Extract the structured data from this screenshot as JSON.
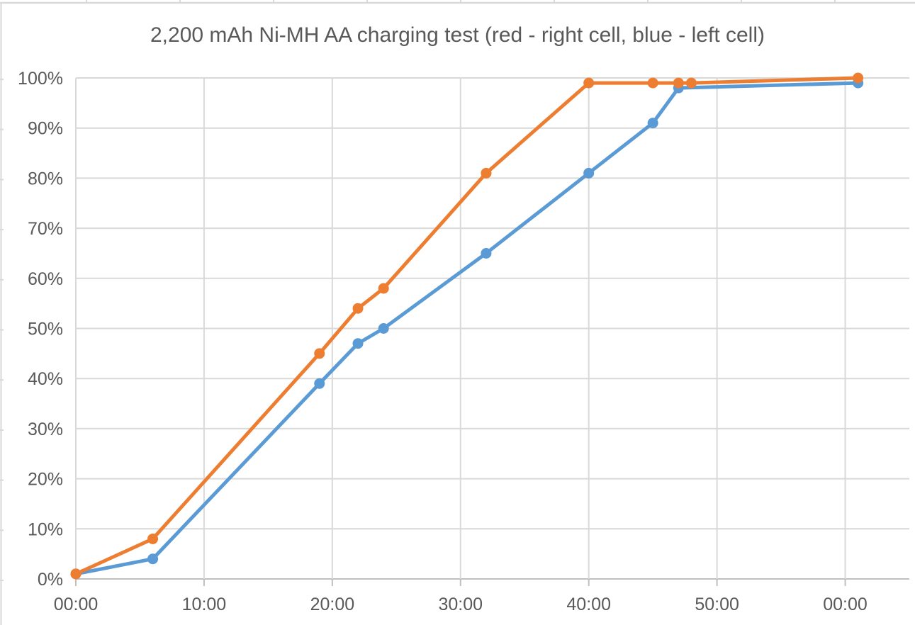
{
  "chart_data": {
    "type": "line",
    "title": "2,200 mAh Ni-MH AA charging test (red - right cell, blue - left cell)",
    "xlabel": "",
    "ylabel": "",
    "grid": true,
    "legend": false,
    "x_axis": {
      "unit": "mm:ss elapsed charging time",
      "range": [
        0,
        65
      ],
      "tick_values": [
        0,
        10,
        20,
        30,
        40,
        50,
        60
      ],
      "tick_labels": [
        "00:00",
        "10:00",
        "20:00",
        "30:00",
        "40:00",
        "50:00",
        "00:00"
      ]
    },
    "y_axis": {
      "unit": "charge percent",
      "range": [
        0,
        100
      ],
      "tick_values": [
        0,
        10,
        20,
        30,
        40,
        50,
        60,
        70,
        80,
        90,
        100
      ],
      "tick_labels": [
        "0%",
        "10%",
        "20%",
        "30%",
        "40%",
        "50%",
        "60%",
        "70%",
        "80%",
        "90%",
        "100%"
      ]
    },
    "series": [
      {
        "name": "left cell (blue)",
        "color": "#5B9BD5",
        "marker": "circle",
        "x": [
          0,
          6,
          19,
          22,
          24,
          32,
          40,
          45,
          47,
          61
        ],
        "y": [
          1,
          4,
          39,
          47,
          50,
          65,
          81,
          91,
          98,
          99
        ]
      },
      {
        "name": "right cell (red)",
        "color": "#ED7D31",
        "marker": "circle",
        "x": [
          0,
          6,
          19,
          22,
          24,
          32,
          40,
          45,
          47,
          48,
          61
        ],
        "y": [
          1,
          8,
          45,
          54,
          58,
          81,
          99,
          99,
          99,
          99,
          100
        ]
      }
    ],
    "colors": {
      "gridline": "#D9D9D9",
      "axis_line": "#BFBFBF",
      "text": "#595959",
      "background": "#FFFFFF",
      "worksheet_edge": "#D9D9D9"
    }
  }
}
